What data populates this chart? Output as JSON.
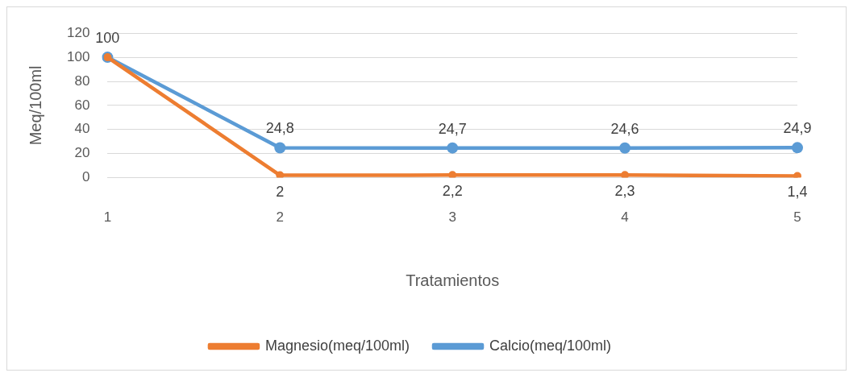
{
  "chart_data": {
    "type": "line",
    "xlabel": "Tratamientos",
    "ylabel": "Meq/100ml",
    "categories": [
      "1",
      "2",
      "3",
      "4",
      "5"
    ],
    "series": [
      {
        "name": "Calcio(meq/100ml)",
        "color": "#5b9bd5",
        "values": [
          100,
          24.8,
          24.7,
          24.6,
          24.9
        ],
        "value_labels": [
          "100",
          "24,8",
          "24,7",
          "24,6",
          "24,9"
        ]
      },
      {
        "name": "Magnesio(meq/100ml)",
        "color": "#ed7d31",
        "values": [
          100,
          2,
          2.2,
          2.3,
          1.4
        ],
        "value_labels": [
          null,
          "2",
          "2,2",
          "2,3",
          "1,4"
        ]
      }
    ],
    "ylim": [
      0,
      120
    ],
    "yticks": [
      0,
      20,
      40,
      60,
      80,
      100,
      120
    ],
    "grid": "y",
    "legend": "bottom",
    "marker": "circle",
    "line_style": "solid"
  }
}
